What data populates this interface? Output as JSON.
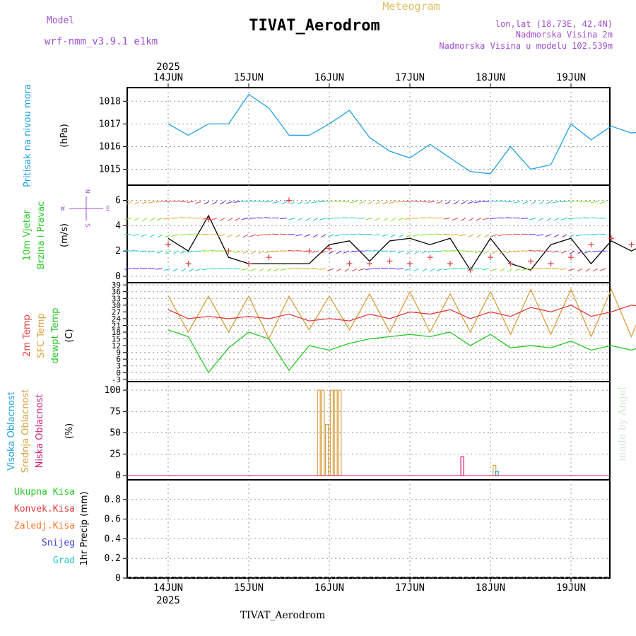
{
  "header": {
    "meteogram_label": "Meteogram",
    "title": "TIVAT_Aerodrom",
    "model_label": "Model",
    "model_name": "wrf-nmm_v3.9.1  e1km",
    "location_line1": "lon,lat (18.73E, 42.4N)",
    "location_line2": "Nadmorska Visina 2m",
    "location_line3": "Nadmorska Visina u modelu 102.539m",
    "footer_title": "TIVAT_Aerodrom",
    "watermark": "made by Angel",
    "year": "2025"
  },
  "days": [
    "14JUN",
    "15JUN",
    "16JUN",
    "17JUN",
    "18JUN",
    "19JUN"
  ],
  "colors": {
    "pressure": "#1ea0e0",
    "temp2m": "#e03c3c",
    "sfc_temp": "#d8a040",
    "dewpt": "#28c828",
    "wind_speed": "#000000",
    "gust": "#e03c3c",
    "high_cloud": "#1ea0e0",
    "mid_cloud": "#d8a040",
    "low_cloud": "#d0207a",
    "meta_purple": "#a050d0"
  },
  "chart_data": [
    {
      "type": "line",
      "panel": "pressure",
      "ylabel_color": "Pritisak na nivou mora",
      "unit": "(hPa)",
      "ylim": [
        1014.3,
        1018.6
      ],
      "yticks": [
        1015,
        1016,
        1017,
        1018
      ],
      "grid": true,
      "series": [
        {
          "x": [
            0.0,
            0.25,
            0.5,
            0.75,
            1.0,
            1.25,
            1.5,
            1.75,
            2.0,
            2.25,
            2.5,
            2.75,
            3.0,
            3.25,
            3.5,
            3.75,
            4.0,
            4.25,
            4.5,
            4.75,
            5.0,
            5.25,
            5.5,
            5.75,
            6.0
          ],
          "values": [
            1017.0,
            1016.5,
            1017.0,
            1017.0,
            1018.3,
            1017.7,
            1016.5,
            1016.5,
            1017.0,
            1017.6,
            1016.4,
            1015.8,
            1015.5,
            1016.1,
            1015.5,
            1014.9,
            1014.8,
            1016.0,
            1015.0,
            1015.2,
            1017.0,
            1016.3,
            1016.9,
            1016.6,
            1016.7
          ]
        }
      ]
    },
    {
      "type": "line",
      "panel": "wind",
      "ylabel_color": "10m Vjetar",
      "ylabel_color2": "Brzina i Pravac",
      "unit": "(m/s)",
      "compass": {
        "n": "N",
        "s": "S",
        "e": "E",
        "w": "W"
      },
      "ylim": [
        -0.5,
        7.2
      ],
      "yticks": [
        0,
        2,
        4,
        6
      ],
      "grid": true,
      "series": [
        {
          "name": "speed",
          "x": [
            0.0,
            0.25,
            0.5,
            0.75,
            1.0,
            1.25,
            1.5,
            1.75,
            2.0,
            2.25,
            2.5,
            2.75,
            3.0,
            3.25,
            3.5,
            3.75,
            4.0,
            4.25,
            4.5,
            4.75,
            5.0,
            5.25,
            5.5,
            5.75,
            6.0
          ],
          "values": [
            3.0,
            2.0,
            4.8,
            1.5,
            1.0,
            1.0,
            1.0,
            1.0,
            2.5,
            2.8,
            1.2,
            2.8,
            3.0,
            2.5,
            3.0,
            0.5,
            3.0,
            1.0,
            0.5,
            2.5,
            3.0,
            1.0,
            2.8,
            2.0,
            2.8
          ]
        },
        {
          "name": "gust",
          "x": [
            0.0,
            0.25,
            0.5,
            0.75,
            1.0,
            1.25,
            1.5,
            1.75,
            2.0,
            2.25,
            2.5,
            2.75,
            3.0,
            3.25,
            3.5,
            3.75,
            4.0,
            4.25,
            4.5,
            4.75,
            5.0,
            5.25,
            5.5,
            5.75,
            6.0
          ],
          "values": [
            2.5,
            1.0,
            4.5,
            2.0,
            1.0,
            1.5,
            6.0,
            2.0,
            2.2,
            1.0,
            1.0,
            1.2,
            1.0,
            1.5,
            1.0,
            0.5,
            1.5,
            1.0,
            1.2,
            1.0,
            1.5,
            2.5,
            3.0,
            2.5,
            2.0
          ]
        }
      ]
    },
    {
      "type": "line",
      "panel": "temperature",
      "ylabel_a": "2m Temp",
      "ylabel_b": "SFC Temp",
      "ylabel_c": "dewpt Temp",
      "unit": "(C)",
      "ylim": [
        -4,
        40
      ],
      "yticks": [
        -3,
        0,
        3,
        6,
        9,
        12,
        15,
        18,
        21,
        24,
        27,
        30,
        33,
        36,
        39
      ],
      "grid": true,
      "series": [
        {
          "name": "2m Temp",
          "x": [
            0.0,
            0.25,
            0.5,
            0.75,
            1.0,
            1.25,
            1.5,
            1.75,
            2.0,
            2.25,
            2.5,
            2.75,
            3.0,
            3.25,
            3.5,
            3.75,
            4.0,
            4.25,
            4.5,
            4.75,
            5.0,
            5.25,
            5.5,
            5.75,
            6.0
          ],
          "values": [
            28,
            24,
            25,
            24,
            25,
            24,
            26,
            23,
            24,
            23,
            26,
            24,
            27,
            26,
            28,
            24,
            27,
            25,
            29,
            27,
            30,
            25,
            27,
            30,
            29
          ]
        },
        {
          "name": "SFC Temp",
          "x": [
            0.0,
            0.25,
            0.5,
            0.75,
            1.0,
            1.25,
            1.5,
            1.75,
            2.0,
            2.25,
            2.5,
            2.75,
            3.0,
            3.25,
            3.5,
            3.75,
            4.0,
            4.25,
            4.5,
            4.75,
            5.0,
            5.25,
            5.5,
            5.75,
            6.0
          ],
          "values": [
            34,
            18,
            34,
            18,
            34,
            15,
            34,
            19,
            34,
            19,
            35,
            18,
            36,
            18,
            35,
            18,
            36,
            17,
            37,
            17,
            37,
            16,
            37,
            16,
            38
          ]
        },
        {
          "name": "dewpt Temp",
          "x": [
            0.0,
            0.25,
            0.5,
            0.75,
            1.0,
            1.25,
            1.5,
            1.75,
            2.0,
            2.25,
            2.5,
            2.75,
            3.0,
            3.25,
            3.5,
            3.75,
            4.0,
            4.25,
            4.5,
            4.75,
            5.0,
            5.25,
            5.5,
            5.75,
            6.0
          ],
          "values": [
            19,
            16,
            0,
            11,
            18,
            15,
            1,
            12,
            10,
            13,
            15,
            16,
            17,
            16,
            18,
            12,
            17,
            11,
            12,
            11,
            14,
            10,
            12,
            10,
            13
          ]
        }
      ]
    },
    {
      "type": "bar",
      "panel": "cloud",
      "ylabel_a": "Visoka Oblacnost",
      "ylabel_b": "Srednja Oblacnost",
      "ylabel_c": "Niska Oblacnost",
      "unit": "(%)",
      "ylim": [
        -5,
        110
      ],
      "yticks": [
        0,
        25,
        50,
        75,
        100
      ],
      "grid": true,
      "series": [
        {
          "name": "Srednja",
          "x": [
            2.37,
            2.42,
            2.47,
            2.53,
            2.58,
            2.63
          ],
          "values": [
            100,
            100,
            60,
            100,
            100,
            100
          ]
        },
        {
          "name": "Niska",
          "x": [
            4.15
          ],
          "values": [
            22
          ]
        },
        {
          "name": "Srednja-late",
          "x": [
            4.55
          ],
          "values": [
            12
          ]
        },
        {
          "name": "Visoka",
          "x": [
            4.58
          ],
          "values": [
            5
          ]
        }
      ]
    },
    {
      "type": "bar",
      "panel": "precip",
      "legend": [
        "Ukupna Kisa",
        "Konvek.Kisa",
        "Zaledj.Kisa",
        "Snijeg",
        "Grad"
      ],
      "ylabel": "1hr Precip (mm)",
      "ylim": [
        0,
        1.0
      ],
      "yticks": [
        0,
        0.2,
        0.4,
        0.6,
        0.8
      ],
      "grid": true,
      "values": []
    }
  ]
}
